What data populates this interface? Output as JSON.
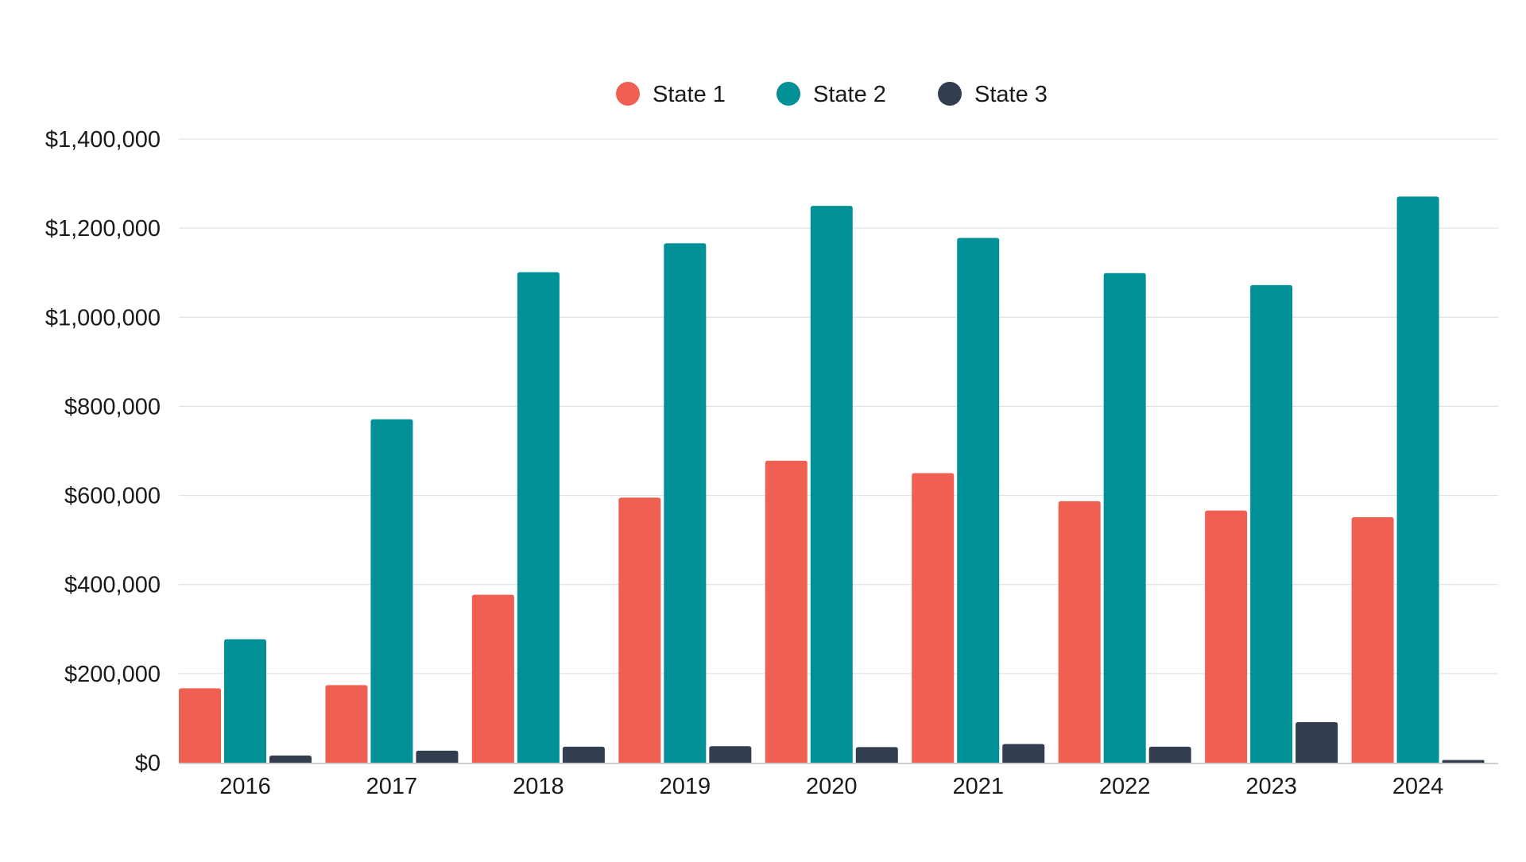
{
  "chart_data": {
    "type": "bar",
    "categories": [
      "2016",
      "2017",
      "2018",
      "2019",
      "2020",
      "2021",
      "2022",
      "2023",
      "2024"
    ],
    "series": [
      {
        "name": "State 1",
        "color": "#EF5F52",
        "values": [
          167000,
          174000,
          377000,
          595000,
          678000,
          650000,
          587000,
          566000,
          551000
        ]
      },
      {
        "name": "State 2",
        "color": "#009096",
        "values": [
          277000,
          771000,
          1101000,
          1166000,
          1250000,
          1178000,
          1099000,
          1072000,
          1271000
        ]
      },
      {
        "name": "State 3",
        "color": "#323E4F",
        "values": [
          16000,
          27000,
          36000,
          37000,
          35000,
          42000,
          36000,
          91000,
          6000
        ]
      }
    ],
    "ylim": [
      0,
      1400000
    ],
    "yticks": [
      0,
      200000,
      400000,
      600000,
      800000,
      1000000,
      1200000,
      1400000
    ],
    "ytick_labels": [
      "$0",
      "$200,000",
      "$400,000",
      "$600,000",
      "$800,000",
      "$1,000,000",
      "$1,200,000",
      "$1,400,000"
    ],
    "title": "",
    "xlabel": "",
    "ylabel": "",
    "grid": true,
    "legend_position": "top-center"
  },
  "colors": {
    "gridline": "#dcdcdc",
    "axis": "#bdbdbd",
    "text": "#1a1a1a"
  }
}
